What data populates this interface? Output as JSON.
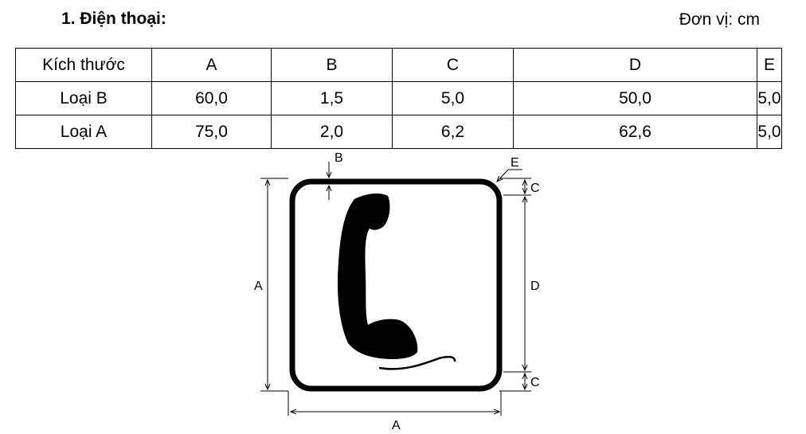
{
  "section": {
    "title": "1. Điện thoại:",
    "unit": "Đơn vị: cm"
  },
  "table": {
    "header": [
      "Kích thước",
      "A",
      "B",
      "C",
      "D",
      "E"
    ],
    "rows": [
      [
        "Loại B",
        "60,0",
        "1,5",
        "5,0",
        "50,0",
        "5,0"
      ],
      [
        "Loại A",
        "75,0",
        "2,0",
        "6,2",
        "62,6",
        "5,0"
      ]
    ]
  },
  "diagram": {
    "labels": {
      "a_left": "A",
      "a_bottom": "A",
      "b": "B",
      "c_top": "C",
      "c_bottom": "C",
      "d": "D",
      "e": "E"
    },
    "symbol": "telephone-handset-icon"
  }
}
